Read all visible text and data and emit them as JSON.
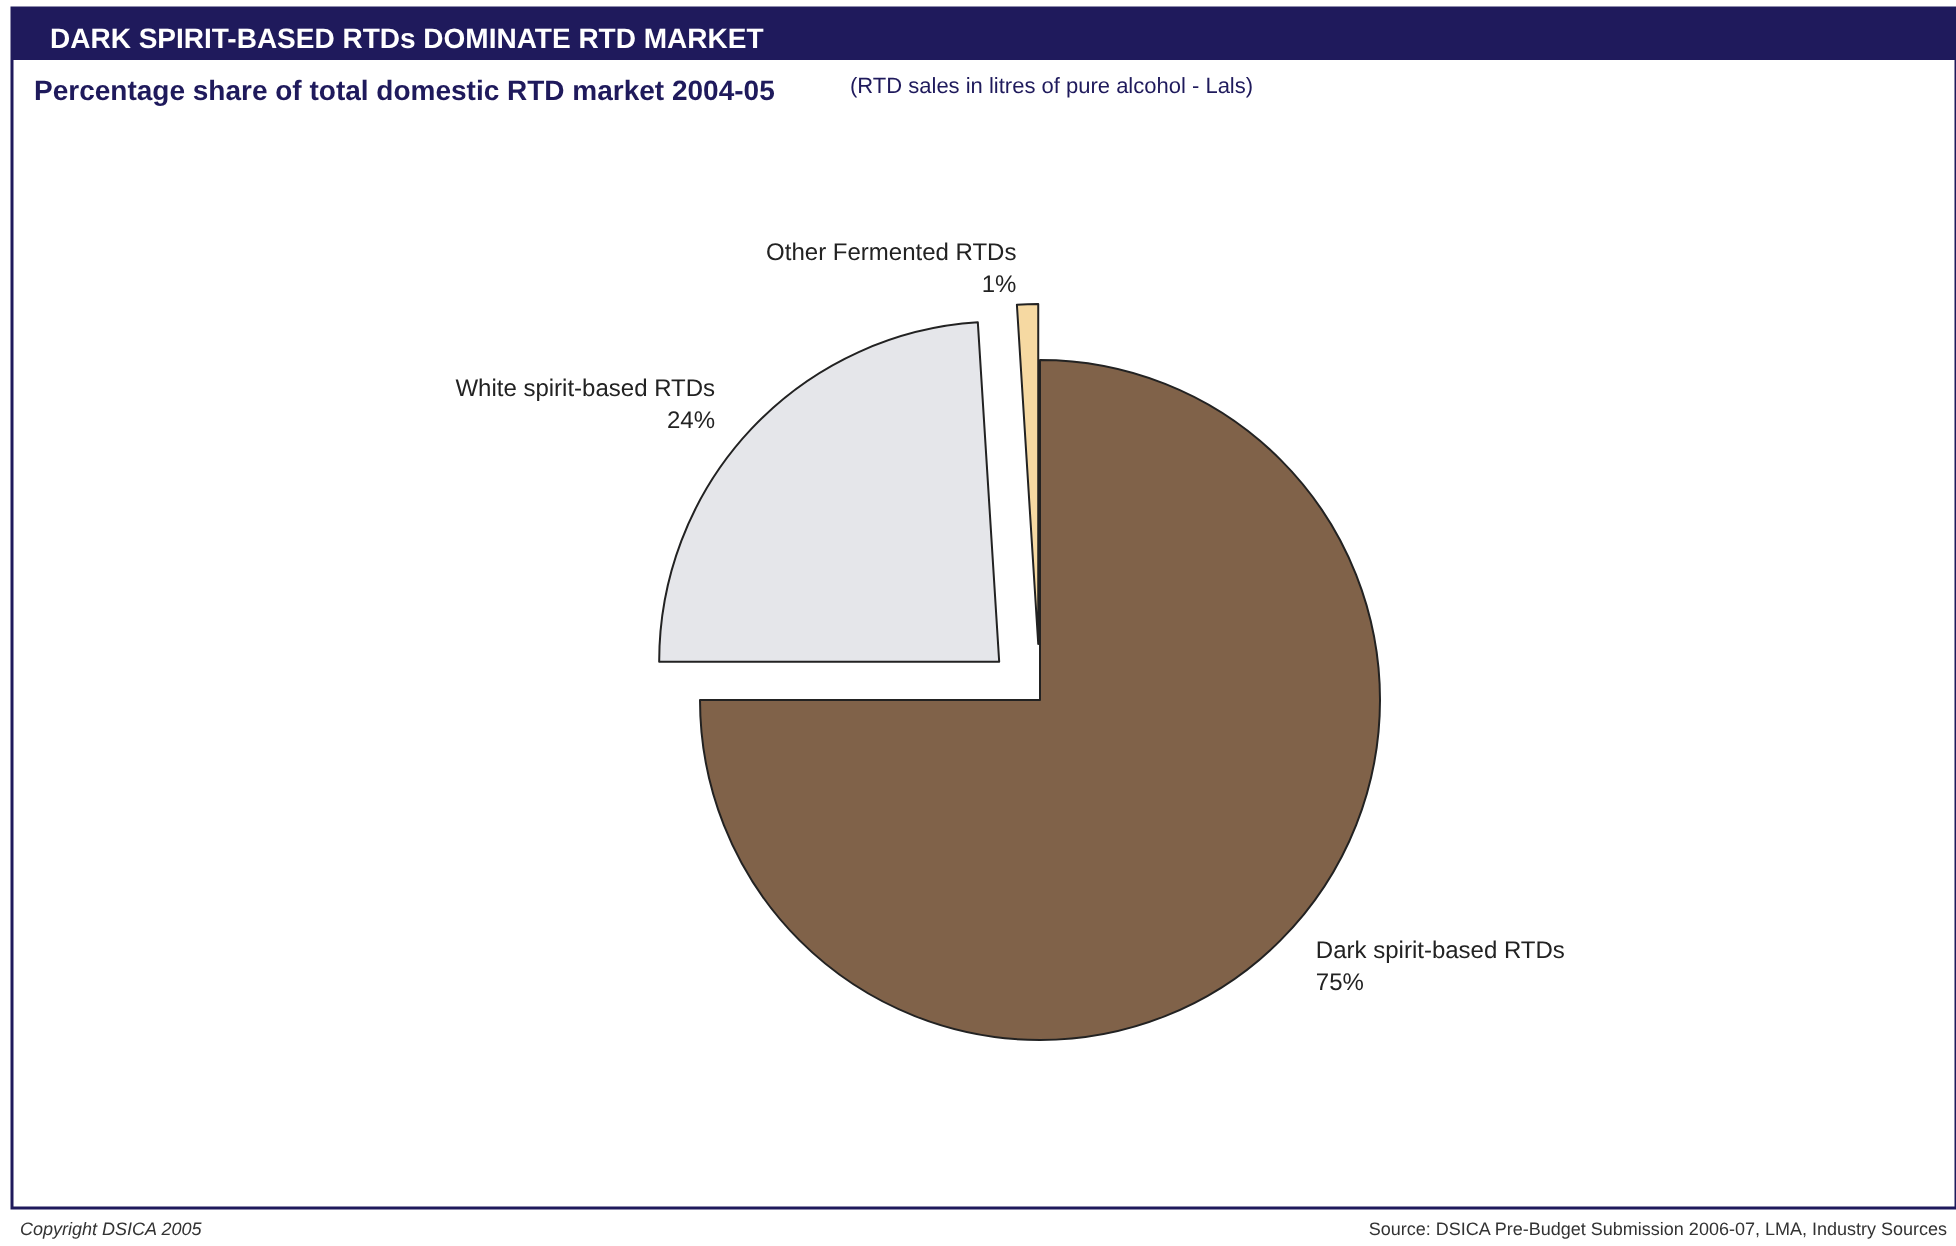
{
  "chart_data": {
    "type": "pie",
    "title": "DARK SPIRIT-BASED RTDs DOMINATE RTD MARKET",
    "subtitle": "Percentage share of total domestic RTD market 2004-05",
    "categories": [
      "Dark spirit-based RTDs",
      "White spirit-based RTDs",
      "Other Fermented RTDs"
    ],
    "values": [
      75,
      24,
      1
    ],
    "value_labels": [
      "75%",
      "24%",
      "1%"
    ],
    "colors": [
      "#806249",
      "#e5e6ea",
      "#f6d9a2"
    ],
    "legend": false,
    "annotations": [
      "(RTD sales in litres of pure alcohol - Lals)",
      "Copyright DSICA 2005",
      "Source: DSICA Pre-Budget Submission 2006-07, LMA, Industry Sources"
    ]
  }
}
